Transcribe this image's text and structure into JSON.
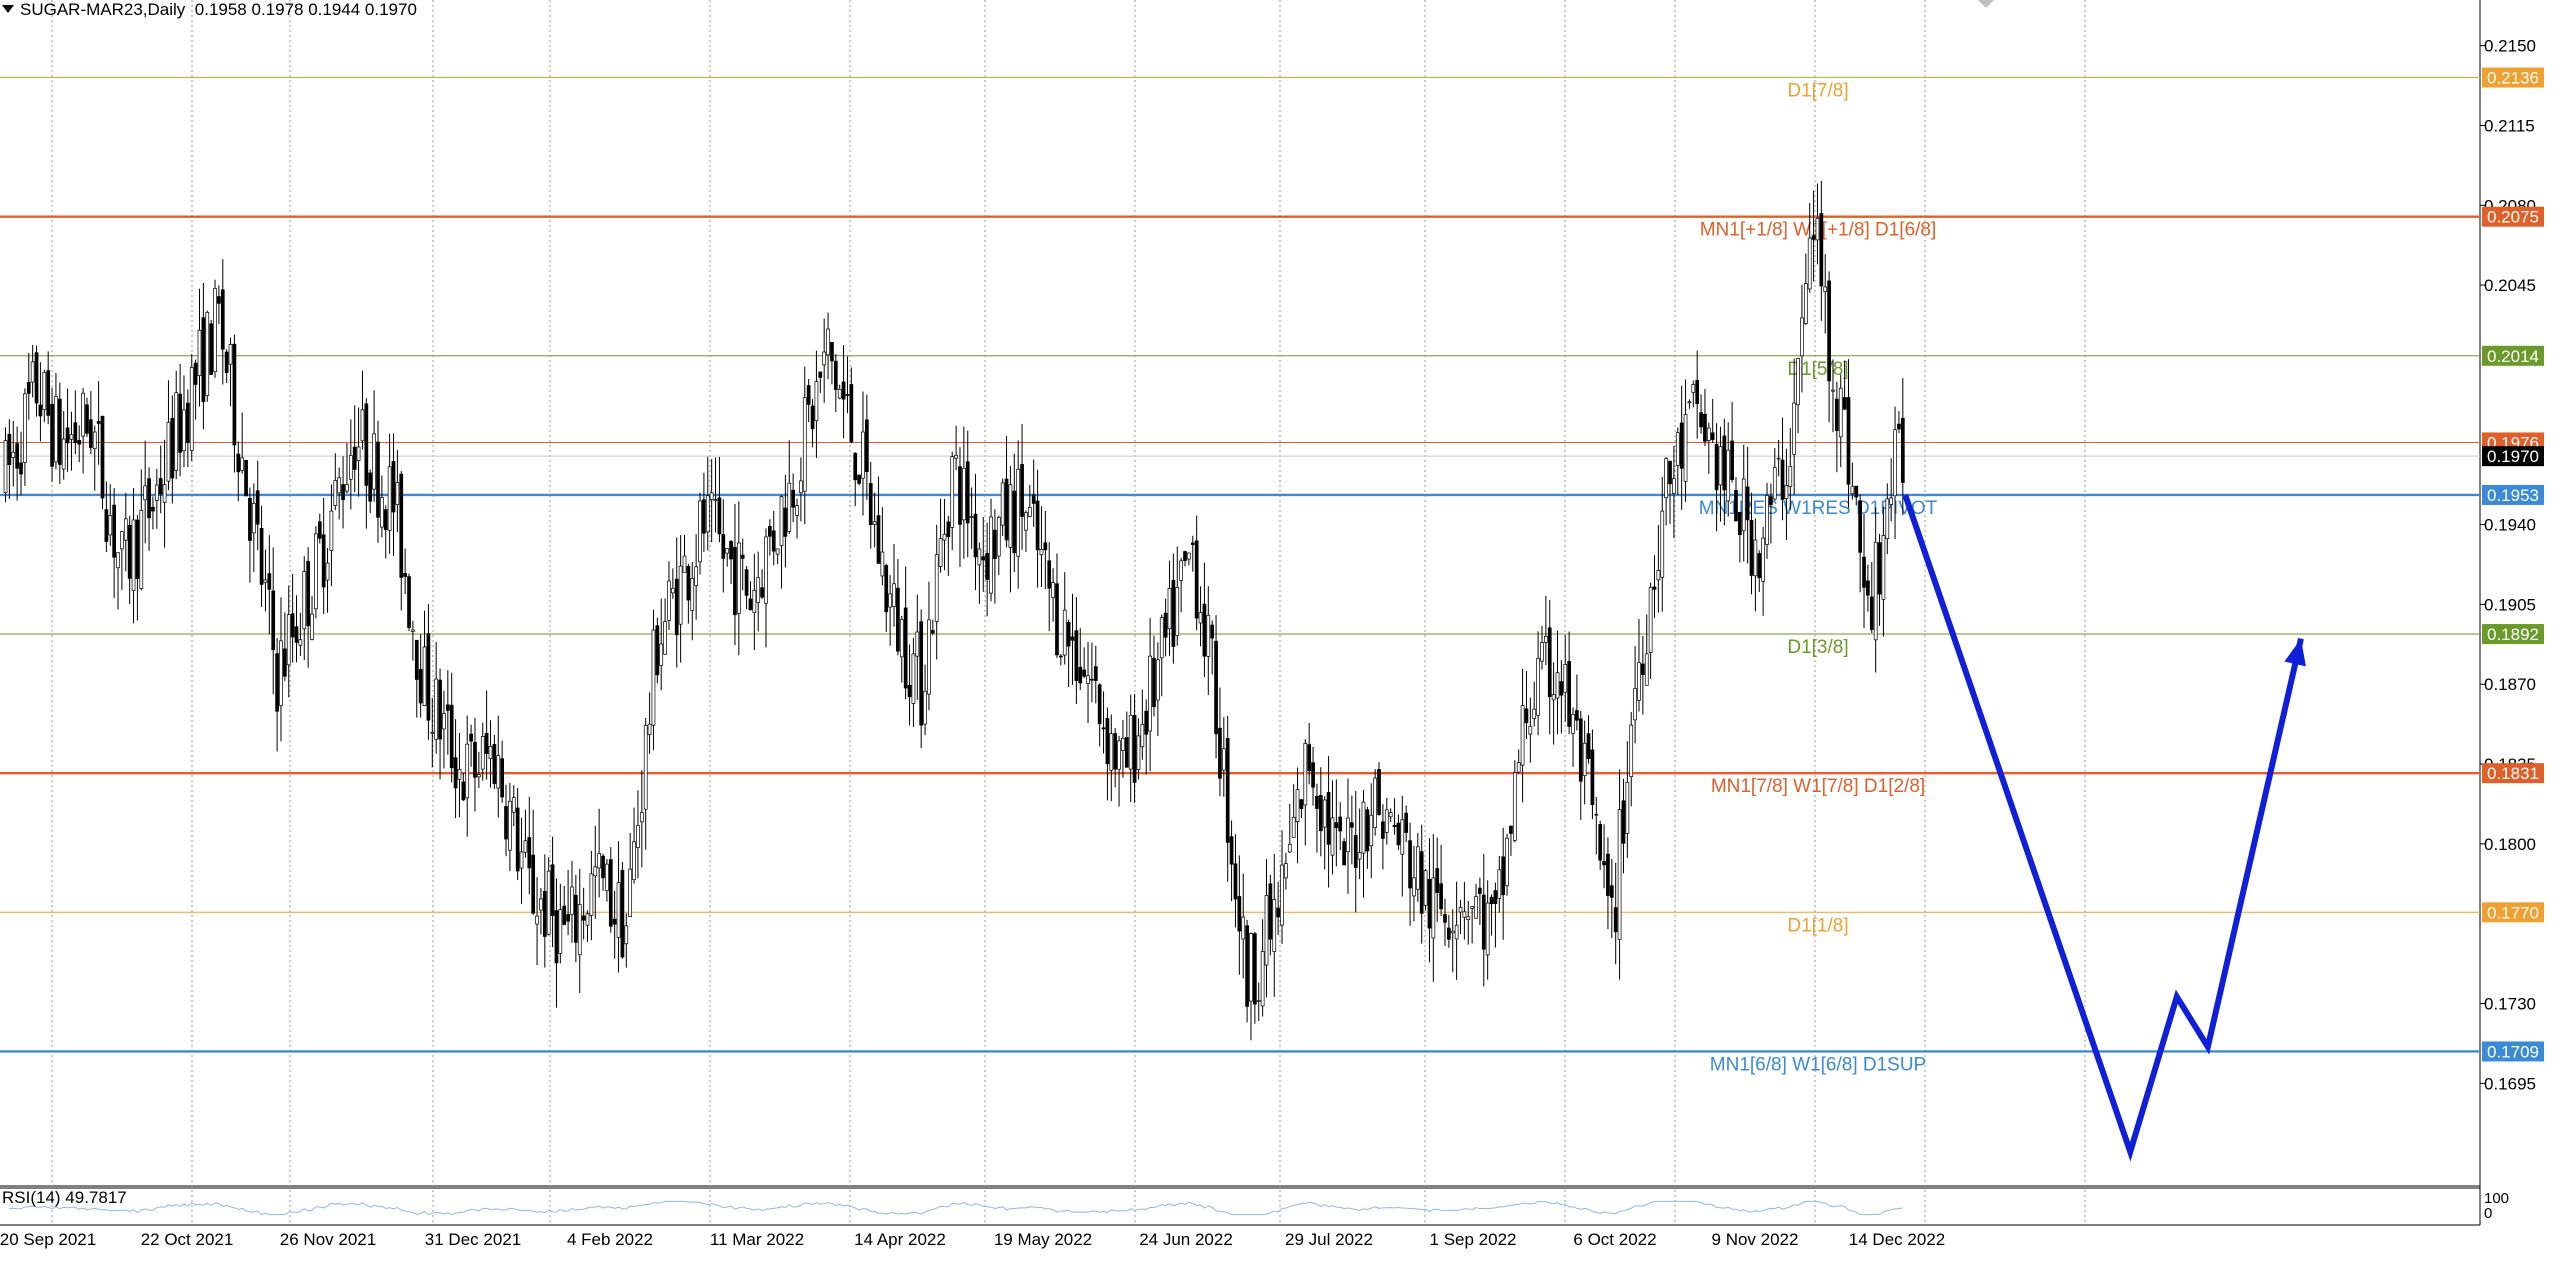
{
  "header": {
    "symbol": "SUGAR-MAR23,Daily",
    "ohlc": "0.1958 0.1978 0.1944 0.1970"
  },
  "rsi": {
    "label": "RSI(14) 49.7817",
    "axis_top": "100",
    "axis_bottom": "0"
  },
  "colors": {
    "up": "#ffffff",
    "down": "#000000",
    "wick": "#000000",
    "forecast": "#1020d8",
    "rsi_line": "#8fb8e6",
    "grid": "#9a9a9a"
  },
  "chart_data": {
    "type": "candlestick",
    "ylim": [
      0.165,
      0.217
    ],
    "y_ticks": [
      "0.2150",
      "0.2115",
      "0.2080",
      "0.2045",
      "0.1940",
      "0.1905",
      "0.1870",
      "0.1835",
      "0.1800",
      "0.1730",
      "0.1695"
    ],
    "x_ticks": [
      "20 Sep 2021",
      "22 Oct 2021",
      "26 Nov 2021",
      "31 Dec 2021",
      "4 Feb 2022",
      "11 Mar 2022",
      "14 Apr 2022",
      "19 May 2022",
      "24 Jun 2022",
      "29 Jul 2022",
      "1 Sep 2022",
      "6 Oct 2022",
      "9 Nov 2022",
      "14 Dec 2022"
    ],
    "current_price": "0.1970",
    "levels": [
      {
        "price": 0.2136,
        "value_label": "0.2136",
        "text": "D1[7/8]",
        "color": "#f0a030",
        "major": false
      },
      {
        "price": 0.2075,
        "value_label": "0.2075",
        "text": "MN1[+1/8] W1[+1/8] D1[6/8]",
        "color": "#e0602a",
        "major": true
      },
      {
        "price": 0.2014,
        "value_label": "0.2014",
        "text": "D1[5/8]",
        "color": "#6a9a2a",
        "major": false
      },
      {
        "price": 0.1976,
        "value_label": "0.1976",
        "text": "",
        "color": "#e0602a",
        "major": false
      },
      {
        "price": 0.1953,
        "value_label": "0.1953",
        "text": "MN1RES W1RES D1PIVOT",
        "color": "#3a8ad8",
        "major": true
      },
      {
        "price": 0.1892,
        "value_label": "0.1892",
        "text": "D1[3/8]",
        "color": "#6a9a2a",
        "major": false
      },
      {
        "price": 0.1831,
        "value_label": "0.1831",
        "text": "MN1[7/8] W1[7/8] D1[2/8]",
        "color": "#e0602a",
        "major": true
      },
      {
        "price": 0.177,
        "value_label": "0.1770",
        "text": "D1[1/8]",
        "color": "#f0a030",
        "major": false
      },
      {
        "price": 0.1709,
        "value_label": "0.1709",
        "text": "MN1[6/8] W1[6/8] D1SUP",
        "color": "#3a8ad8",
        "major": true
      }
    ],
    "anchors": [
      [
        0,
        0.196
      ],
      [
        8,
        0.2
      ],
      [
        14,
        0.1975
      ],
      [
        22,
        0.1985
      ],
      [
        30,
        0.192
      ],
      [
        38,
        0.195
      ],
      [
        48,
        0.2
      ],
      [
        55,
        0.203
      ],
      [
        62,
        0.196
      ],
      [
        70,
        0.1875
      ],
      [
        80,
        0.192
      ],
      [
        90,
        0.198
      ],
      [
        100,
        0.195
      ],
      [
        108,
        0.187
      ],
      [
        118,
        0.183
      ],
      [
        126,
        0.184
      ],
      [
        135,
        0.178
      ],
      [
        145,
        0.176
      ],
      [
        152,
        0.1785
      ],
      [
        160,
        0.1765
      ],
      [
        168,
        0.189
      ],
      [
        180,
        0.194
      ],
      [
        192,
        0.191
      ],
      [
        202,
        0.1955
      ],
      [
        212,
        0.2015
      ],
      [
        220,
        0.197
      ],
      [
        228,
        0.1905
      ],
      [
        236,
        0.187
      ],
      [
        244,
        0.1965
      ],
      [
        252,
        0.193
      ],
      [
        262,
        0.195
      ],
      [
        270,
        0.1905
      ],
      [
        280,
        0.187
      ],
      [
        288,
        0.183
      ],
      [
        298,
        0.188
      ],
      [
        306,
        0.193
      ],
      [
        312,
        0.186
      ],
      [
        320,
        0.174
      ],
      [
        328,
        0.177
      ],
      [
        336,
        0.184
      ],
      [
        344,
        0.179
      ],
      [
        352,
        0.182
      ],
      [
        360,
        0.18
      ],
      [
        368,
        0.177
      ],
      [
        376,
        0.178
      ],
      [
        384,
        0.176
      ],
      [
        392,
        0.186
      ],
      [
        400,
        0.188
      ],
      [
        408,
        0.182
      ],
      [
        414,
        0.176
      ],
      [
        420,
        0.187
      ],
      [
        428,
        0.1955
      ],
      [
        436,
        0.199
      ],
      [
        444,
        0.1955
      ],
      [
        452,
        0.193
      ],
      [
        460,
        0.1975
      ],
      [
        466,
        0.2075
      ],
      [
        470,
        0.202
      ],
      [
        476,
        0.196
      ],
      [
        480,
        0.1895
      ],
      [
        486,
        0.196
      ],
      [
        490,
        0.197
      ]
    ],
    "forecast_path": [
      [
        490,
        0.1953
      ],
      [
        548,
        0.1665
      ],
      [
        560,
        0.1733
      ],
      [
        568,
        0.1711
      ],
      [
        592,
        0.189
      ]
    ],
    "total_bars": 490
  }
}
